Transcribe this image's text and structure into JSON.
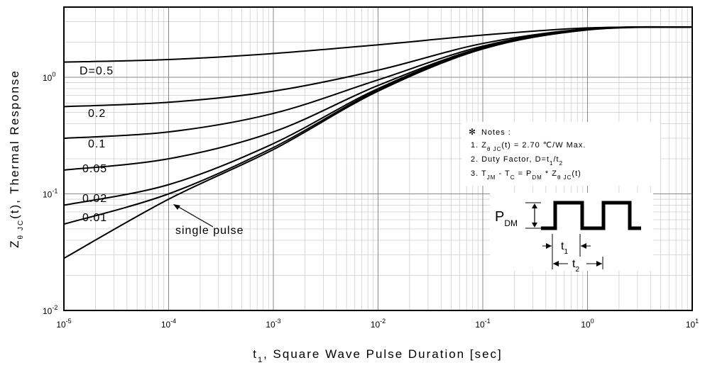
{
  "chart_data": {
    "type": "line",
    "title": "",
    "xlabel": "t1, Square Wave Pulse Duration [sec]",
    "xlabel_parts": {
      "main": "t",
      "sub": "1",
      "rest": ", Square Wave Pulse Duration [sec]"
    },
    "ylabel": "Zθ JC(t), Thermal Response",
    "ylabel_parts": {
      "main": "Z",
      "sub1": "θ",
      "sub2": "JC",
      "rest": "(t), Thermal Response"
    },
    "x_scale": "log",
    "y_scale": "log",
    "xlim": [
      1e-05,
      10
    ],
    "ylim": [
      0.01,
      4
    ],
    "grid": true,
    "x_ticks": [
      {
        "value": 1e-05,
        "base": "10",
        "exp": "-5"
      },
      {
        "value": 0.0001,
        "base": "10",
        "exp": "-4"
      },
      {
        "value": 0.001,
        "base": "10",
        "exp": "-3"
      },
      {
        "value": 0.01,
        "base": "10",
        "exp": "-2"
      },
      {
        "value": 0.1,
        "base": "10",
        "exp": "-1"
      },
      {
        "value": 1,
        "base": "10",
        "exp": "0"
      },
      {
        "value": 10,
        "base": "10",
        "exp": "1"
      }
    ],
    "y_ticks": [
      {
        "value": 0.01,
        "base": "10",
        "exp": "-2"
      },
      {
        "value": 0.1,
        "base": "10",
        "exp": "-1"
      },
      {
        "value": 1,
        "base": "10",
        "exp": "0"
      }
    ],
    "series": [
      {
        "name": "D=0.5",
        "x": [
          1e-05,
          0.0001,
          0.001,
          0.01,
          0.1,
          1,
          10
        ],
        "y": [
          1.35,
          1.42,
          1.6,
          1.9,
          2.3,
          2.65,
          2.7
        ]
      },
      {
        "name": "0.2",
        "x": [
          1e-05,
          0.0001,
          0.001,
          0.01,
          0.1,
          1,
          10
        ],
        "y": [
          0.56,
          0.61,
          0.76,
          1.15,
          1.95,
          2.6,
          2.7
        ]
      },
      {
        "name": "0.1",
        "x": [
          1e-05,
          0.0001,
          0.001,
          0.01,
          0.1,
          1,
          10
        ],
        "y": [
          0.3,
          0.34,
          0.49,
          0.95,
          1.85,
          2.6,
          2.7
        ]
      },
      {
        "name": "0.05",
        "x": [
          1e-05,
          0.0001,
          0.001,
          0.01,
          0.1,
          1,
          10
        ],
        "y": [
          0.16,
          0.2,
          0.34,
          0.85,
          1.8,
          2.58,
          2.7
        ]
      },
      {
        "name": "0.02",
        "x": [
          1e-05,
          0.0001,
          0.001,
          0.01,
          0.1,
          1,
          10
        ],
        "y": [
          0.08,
          0.12,
          0.27,
          0.8,
          1.78,
          2.57,
          2.7
        ]
      },
      {
        "name": "0.01",
        "x": [
          1e-05,
          0.0001,
          0.001,
          0.01,
          0.1,
          1,
          10
        ],
        "y": [
          0.055,
          0.1,
          0.25,
          0.78,
          1.76,
          2.56,
          2.7
        ]
      },
      {
        "name": "single pulse",
        "x": [
          1e-05,
          0.0001,
          0.001,
          0.01,
          0.1,
          1,
          10
        ],
        "y": [
          0.028,
          0.09,
          0.24,
          0.76,
          1.75,
          2.55,
          2.7
        ]
      }
    ],
    "annotations": {
      "notes_title": "Notes :",
      "note1": {
        "prefix": "1. Z",
        "sub": "θ JC",
        "suffix": "(t) = 2.70 ℃/W Max."
      },
      "note2": {
        "prefix": "2. Duty Factor, D=t",
        "sub1": "1",
        "mid": "/t",
        "sub2": "2"
      },
      "note3": {
        "a": "3. T",
        "a_sub": "JM",
        "b": " - T",
        "b_sub": "C",
        "c": " = P",
        "c_sub": "DM",
        "d": " * Z",
        "d_sub": "θ JC",
        "e": "(t)"
      },
      "pdm": {
        "main": "P",
        "sub": "DM"
      },
      "t1": {
        "main": "t",
        "sub": "1"
      },
      "t2": {
        "main": "t",
        "sub": "2"
      }
    }
  }
}
